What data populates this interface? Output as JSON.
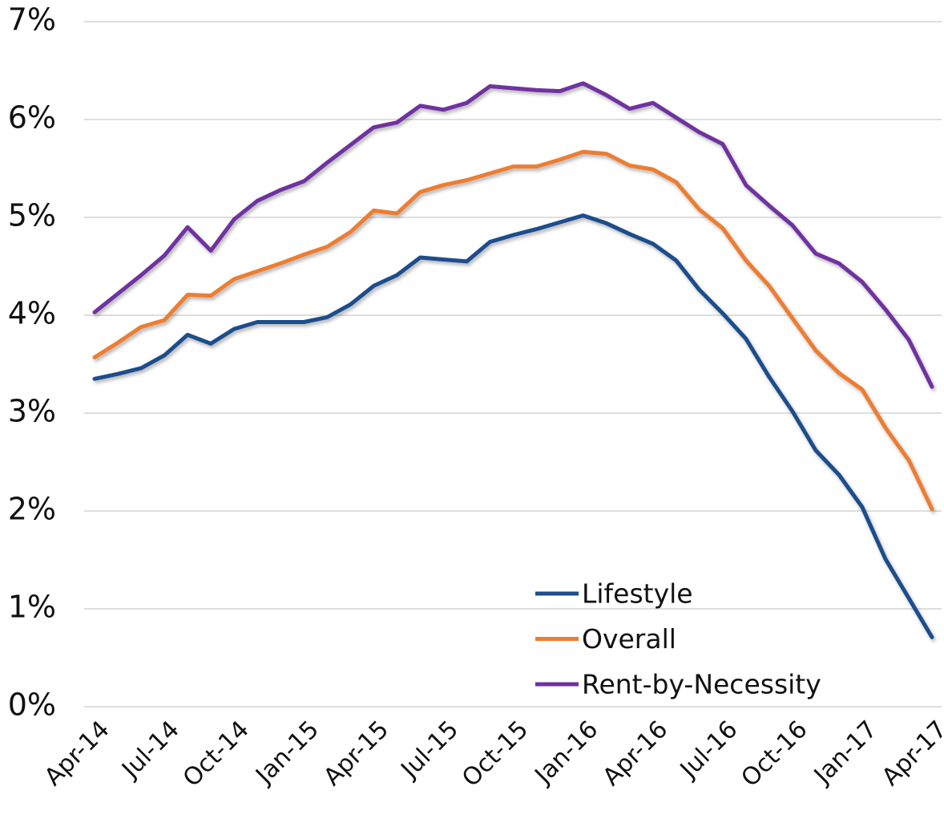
{
  "chart_data": {
    "type": "line",
    "categories": [
      "Apr-14",
      null,
      null,
      "Jul-14",
      null,
      null,
      "Oct-14",
      null,
      null,
      "Jan-15",
      null,
      null,
      "Apr-15",
      null,
      null,
      "Jul-15",
      null,
      null,
      "Oct-15",
      null,
      null,
      "Jan-16",
      null,
      null,
      "Apr-16",
      null,
      null,
      "Jul-16",
      null,
      null,
      "Oct-16",
      null,
      null,
      "Jan-17",
      null,
      null,
      "Apr-17"
    ],
    "series": [
      {
        "name": "Lifestyle",
        "color": "#1f4e8c",
        "values": [
          3.35,
          3.4,
          3.46,
          3.59,
          3.8,
          3.71,
          3.86,
          3.93,
          3.93,
          3.93,
          3.98,
          4.11,
          4.3,
          4.41,
          4.59,
          4.57,
          4.55,
          4.75,
          4.82,
          4.88,
          4.95,
          5.02,
          4.94,
          4.83,
          4.73,
          4.56,
          4.26,
          4.02,
          3.76,
          3.37,
          3.02,
          2.62,
          2.37,
          2.04,
          1.51,
          1.11,
          0.71
        ]
      },
      {
        "name": "Overall",
        "color": "#ed7d31",
        "values": [
          3.57,
          3.72,
          3.88,
          3.95,
          4.21,
          4.2,
          4.37,
          4.45,
          4.53,
          4.62,
          4.7,
          4.85,
          5.07,
          5.04,
          5.26,
          5.33,
          5.38,
          5.45,
          5.52,
          5.52,
          5.59,
          5.67,
          5.65,
          5.53,
          5.49,
          5.36,
          5.08,
          4.89,
          4.56,
          4.3,
          3.97,
          3.64,
          3.41,
          3.24,
          2.85,
          2.52,
          2.02
        ]
      },
      {
        "name": "Rent-by-Necessity",
        "color": "#7030a0",
        "values": [
          4.03,
          4.22,
          4.41,
          4.61,
          4.9,
          4.66,
          4.98,
          5.17,
          5.28,
          5.37,
          5.56,
          5.74,
          5.92,
          5.97,
          6.14,
          6.1,
          6.17,
          6.34,
          6.32,
          6.3,
          6.29,
          6.37,
          6.25,
          6.11,
          6.17,
          6.02,
          5.87,
          5.75,
          5.33,
          5.12,
          4.92,
          4.63,
          4.53,
          4.34,
          4.06,
          3.75,
          3.27
        ]
      }
    ],
    "ylim": [
      0,
      7
    ],
    "yticks": [
      {
        "value": 0,
        "label": "0%"
      },
      {
        "value": 1,
        "label": "1%"
      },
      {
        "value": 2,
        "label": "2%"
      },
      {
        "value": 3,
        "label": "3%"
      },
      {
        "value": 4,
        "label": "4%"
      },
      {
        "value": 5,
        "label": "5%"
      },
      {
        "value": 6,
        "label": "6%"
      },
      {
        "value": 7,
        "label": "7%"
      }
    ],
    "grid": true,
    "legend": "lower-center"
  }
}
